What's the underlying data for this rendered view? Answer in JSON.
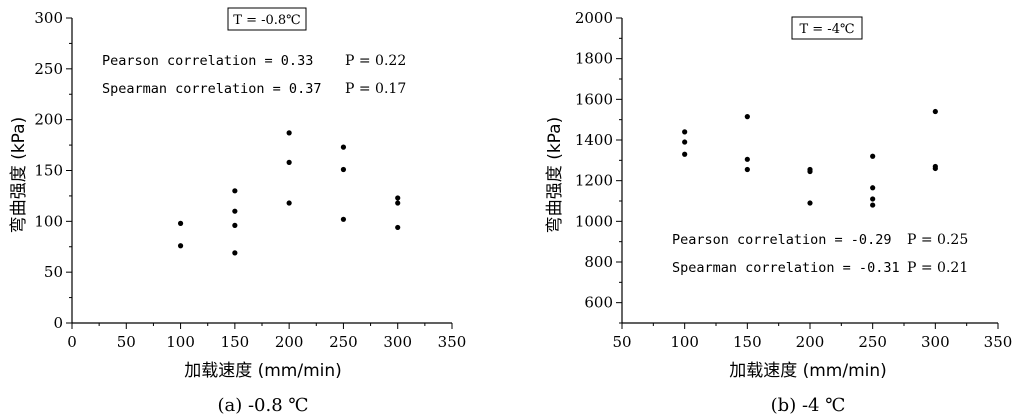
{
  "chart_data": [
    {
      "type": "scatter",
      "temperature_label": "T = -0.8℃",
      "xlabel": "加载速度 (mm/min)",
      "ylabel": "弯曲强度 (kPa)",
      "xlim": [
        0,
        350
      ],
      "ylim": [
        0,
        300
      ],
      "x_ticks": [
        0,
        50,
        100,
        150,
        200,
        250,
        300,
        350
      ],
      "y_ticks": [
        0,
        50,
        100,
        150,
        200,
        250,
        300
      ],
      "pearson_text": "Pearson correlation = 0.33",
      "pearson_p": "P = 0.22",
      "spearman_text": "Spearman correlation = 0.37",
      "spearman_p": "P = 0.17",
      "caption": "(a) -0.8 ℃",
      "points": [
        {
          "x": 100,
          "y": 98
        },
        {
          "x": 100,
          "y": 76
        },
        {
          "x": 150,
          "y": 130
        },
        {
          "x": 150,
          "y": 110
        },
        {
          "x": 150,
          "y": 96
        },
        {
          "x": 150,
          "y": 69
        },
        {
          "x": 200,
          "y": 187
        },
        {
          "x": 200,
          "y": 158
        },
        {
          "x": 200,
          "y": 118
        },
        {
          "x": 250,
          "y": 173
        },
        {
          "x": 250,
          "y": 151
        },
        {
          "x": 250,
          "y": 102
        },
        {
          "x": 300,
          "y": 123
        },
        {
          "x": 300,
          "y": 118
        },
        {
          "x": 300,
          "y": 94
        }
      ]
    },
    {
      "type": "scatter",
      "temperature_label": "T = -4℃",
      "xlabel": "加载速度 (mm/min)",
      "ylabel": "弯曲强度 (kPa)",
      "xlim": [
        50,
        350
      ],
      "ylim": [
        500,
        2000
      ],
      "x_ticks": [
        50,
        100,
        150,
        200,
        250,
        300,
        350
      ],
      "y_ticks": [
        600,
        800,
        1000,
        1200,
        1400,
        1600,
        1800,
        2000
      ],
      "pearson_text": "Pearson correlation = -0.29",
      "pearson_p": "P = 0.25",
      "spearman_text": "Spearman correlation = -0.31",
      "spearman_p": "P = 0.21",
      "caption": "(b) -4 ℃",
      "points": [
        {
          "x": 100,
          "y": 1440
        },
        {
          "x": 100,
          "y": 1390
        },
        {
          "x": 100,
          "y": 1330
        },
        {
          "x": 150,
          "y": 1515
        },
        {
          "x": 150,
          "y": 1305
        },
        {
          "x": 150,
          "y": 1255
        },
        {
          "x": 200,
          "y": 1255
        },
        {
          "x": 200,
          "y": 1245
        },
        {
          "x": 200,
          "y": 1090
        },
        {
          "x": 250,
          "y": 1320
        },
        {
          "x": 250,
          "y": 1165
        },
        {
          "x": 250,
          "y": 1110
        },
        {
          "x": 250,
          "y": 1080
        },
        {
          "x": 300,
          "y": 1540
        },
        {
          "x": 300,
          "y": 1270
        },
        {
          "x": 300,
          "y": 1260
        }
      ]
    }
  ]
}
